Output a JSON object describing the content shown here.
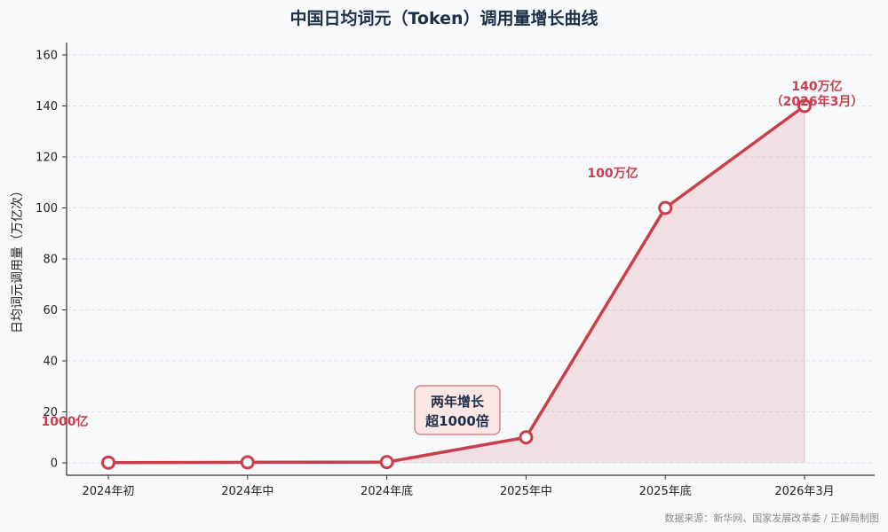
{
  "chart_data": {
    "type": "line",
    "title": "中国日均词元（Token）调用量增长曲线",
    "ylabel": "日均词元调用量（万亿次）",
    "xlabel": "",
    "categories": [
      "2024年初",
      "2024年中",
      "2024年底",
      "2025年中",
      "2025年底",
      "2026年3月"
    ],
    "series": [
      {
        "values": [
          0.1,
          0.2,
          0.3,
          10,
          100,
          140
        ]
      }
    ],
    "ylim": [
      0,
      165
    ],
    "yticks": [
      0,
      20,
      40,
      60,
      80,
      100,
      120,
      140,
      160
    ],
    "grid": true,
    "line_color": "#cc3d4b",
    "fill_color": "#cc3d4b",
    "annotations": {
      "start": "1000亿",
      "mid_line1": "两年增长",
      "mid_line2": "超1000倍",
      "p100": "100万亿",
      "p140_line1": "140万亿",
      "p140_line2": "（2026年3月）"
    }
  },
  "source": "数据来源：新华网、国家发展改革委 / 正解局制图"
}
